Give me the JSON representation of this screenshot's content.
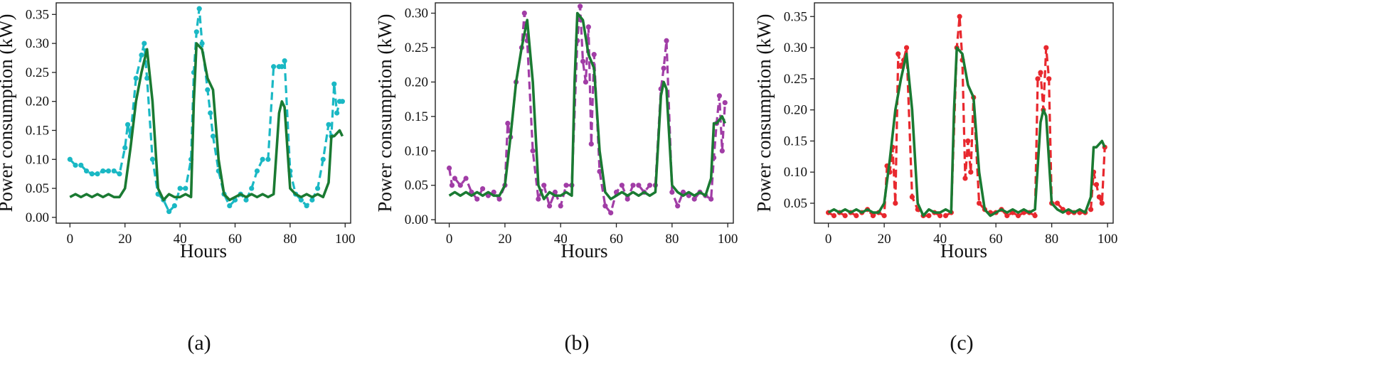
{
  "figure": {
    "panels": [
      "(a)",
      "(b)",
      "(c)"
    ]
  },
  "chart_data": [
    {
      "type": "line",
      "caption": "(a)",
      "xlabel": "Hours",
      "ylabel": "Power consumption (kW)",
      "xlim": [
        -5,
        102
      ],
      "ylim": [
        -0.01,
        0.37
      ],
      "xticks": [
        0,
        20,
        40,
        60,
        80,
        100
      ],
      "yticks": [
        0.0,
        0.05,
        0.1,
        0.15,
        0.2,
        0.25,
        0.3,
        0.35
      ],
      "ytick_labels": [
        "0.00",
        "0.05",
        "0.10",
        "0.15",
        "0.20",
        "0.25",
        "0.30",
        "0.35"
      ],
      "grid": false,
      "series": [
        {
          "color": "#1ab8c4",
          "style": "dashed-markers",
          "x": [
            0,
            2,
            4,
            6,
            8,
            10,
            12,
            14,
            16,
            18,
            20,
            21,
            22,
            24,
            26,
            27,
            28,
            30,
            32,
            34,
            36,
            38,
            40,
            42,
            44,
            45,
            46,
            47,
            48,
            50,
            51,
            52,
            54,
            56,
            58,
            60,
            62,
            64,
            66,
            68,
            70,
            72,
            74,
            76,
            77,
            78,
            80,
            82,
            84,
            86,
            88,
            90,
            92,
            94,
            95,
            96,
            97,
            98,
            99
          ],
          "y": [
            0.1,
            0.09,
            0.09,
            0.08,
            0.075,
            0.075,
            0.08,
            0.08,
            0.08,
            0.075,
            0.12,
            0.16,
            0.14,
            0.24,
            0.28,
            0.3,
            0.24,
            0.1,
            0.04,
            0.03,
            0.01,
            0.02,
            0.05,
            0.05,
            0.1,
            0.25,
            0.32,
            0.36,
            0.3,
            0.22,
            0.18,
            0.14,
            0.08,
            0.04,
            0.02,
            0.03,
            0.04,
            0.03,
            0.05,
            0.08,
            0.1,
            0.1,
            0.26,
            0.26,
            0.26,
            0.27,
            0.08,
            0.04,
            0.03,
            0.02,
            0.03,
            0.05,
            0.1,
            0.16,
            0.14,
            0.23,
            0.18,
            0.2,
            0.2
          ]
        },
        {
          "color": "#1a7a32",
          "style": "solid",
          "x": [
            0,
            2,
            4,
            6,
            8,
            10,
            12,
            14,
            16,
            18,
            20,
            22,
            24,
            26,
            28,
            30,
            32,
            34,
            36,
            38,
            40,
            42,
            44,
            45,
            46,
            48,
            50,
            52,
            54,
            56,
            58,
            60,
            62,
            64,
            66,
            68,
            70,
            72,
            74,
            76,
            77,
            78,
            80,
            82,
            84,
            86,
            88,
            90,
            92,
            94,
            95,
            96,
            98,
            99
          ],
          "y": [
            0.035,
            0.04,
            0.035,
            0.04,
            0.035,
            0.04,
            0.035,
            0.04,
            0.035,
            0.035,
            0.05,
            0.12,
            0.2,
            0.25,
            0.29,
            0.2,
            0.05,
            0.03,
            0.04,
            0.035,
            0.035,
            0.04,
            0.035,
            0.2,
            0.3,
            0.29,
            0.24,
            0.22,
            0.1,
            0.04,
            0.03,
            0.035,
            0.04,
            0.035,
            0.04,
            0.035,
            0.04,
            0.035,
            0.04,
            0.18,
            0.2,
            0.19,
            0.05,
            0.04,
            0.035,
            0.04,
            0.035,
            0.04,
            0.035,
            0.06,
            0.14,
            0.14,
            0.15,
            0.14
          ]
        }
      ]
    },
    {
      "type": "line",
      "caption": "(b)",
      "xlabel": "Hours",
      "ylabel": "Power consumption (kW)",
      "xlim": [
        -5,
        102
      ],
      "ylim": [
        -0.005,
        0.315
      ],
      "xticks": [
        0,
        20,
        40,
        60,
        80,
        100
      ],
      "yticks": [
        0.0,
        0.05,
        0.1,
        0.15,
        0.2,
        0.25,
        0.3
      ],
      "ytick_labels": [
        "0.00",
        "0.05",
        "0.10",
        "0.15",
        "0.20",
        "0.25",
        "0.30"
      ],
      "grid": false,
      "series": [
        {
          "color": "#a13da6",
          "style": "dashed-markers",
          "x": [
            0,
            1,
            2,
            4,
            6,
            8,
            10,
            12,
            14,
            16,
            18,
            20,
            21,
            22,
            24,
            26,
            27,
            28,
            30,
            32,
            34,
            36,
            38,
            40,
            42,
            44,
            46,
            47,
            48,
            49,
            50,
            51,
            52,
            54,
            56,
            58,
            60,
            62,
            64,
            66,
            68,
            70,
            72,
            74,
            76,
            77,
            78,
            80,
            82,
            84,
            86,
            88,
            90,
            92,
            94,
            95,
            96,
            97,
            98,
            99
          ],
          "y": [
            0.075,
            0.05,
            0.06,
            0.05,
            0.06,
            0.04,
            0.03,
            0.045,
            0.035,
            0.04,
            0.03,
            0.05,
            0.14,
            0.12,
            0.2,
            0.25,
            0.3,
            0.26,
            0.1,
            0.03,
            0.05,
            0.02,
            0.04,
            0.02,
            0.05,
            0.05,
            0.26,
            0.31,
            0.23,
            0.2,
            0.28,
            0.11,
            0.24,
            0.07,
            0.02,
            0.01,
            0.04,
            0.05,
            0.03,
            0.05,
            0.05,
            0.04,
            0.05,
            0.05,
            0.19,
            0.22,
            0.26,
            0.04,
            0.02,
            0.04,
            0.035,
            0.03,
            0.04,
            0.035,
            0.03,
            0.09,
            0.14,
            0.18,
            0.1,
            0.17
          ]
        },
        {
          "color": "#1a7a32",
          "style": "solid",
          "x": [
            0,
            2,
            4,
            6,
            8,
            10,
            12,
            14,
            16,
            18,
            20,
            22,
            24,
            26,
            28,
            30,
            32,
            34,
            36,
            38,
            40,
            42,
            44,
            45,
            46,
            48,
            50,
            52,
            54,
            56,
            58,
            60,
            62,
            64,
            66,
            68,
            70,
            72,
            74,
            76,
            77,
            78,
            80,
            82,
            84,
            86,
            88,
            90,
            92,
            94,
            95,
            96,
            98,
            99
          ],
          "y": [
            0.035,
            0.04,
            0.035,
            0.04,
            0.035,
            0.04,
            0.035,
            0.04,
            0.035,
            0.035,
            0.05,
            0.12,
            0.2,
            0.25,
            0.29,
            0.2,
            0.05,
            0.03,
            0.04,
            0.035,
            0.035,
            0.04,
            0.035,
            0.2,
            0.3,
            0.29,
            0.24,
            0.22,
            0.1,
            0.04,
            0.03,
            0.035,
            0.04,
            0.035,
            0.04,
            0.035,
            0.04,
            0.035,
            0.04,
            0.18,
            0.2,
            0.19,
            0.05,
            0.04,
            0.035,
            0.04,
            0.035,
            0.04,
            0.035,
            0.06,
            0.14,
            0.14,
            0.15,
            0.14
          ]
        }
      ]
    },
    {
      "type": "line",
      "caption": "(c)",
      "xlabel": "Hours",
      "ylabel": "Power consumption (kW)",
      "xlim": [
        -5,
        102
      ],
      "ylim": [
        0.018,
        0.372
      ],
      "xticks": [
        0,
        20,
        40,
        60,
        80,
        100
      ],
      "yticks": [
        0.05,
        0.1,
        0.15,
        0.2,
        0.25,
        0.3,
        0.35
      ],
      "ytick_labels": [
        "0.05",
        "0.10",
        "0.15",
        "0.20",
        "0.25",
        "0.30",
        "0.35"
      ],
      "grid": false,
      "series": [
        {
          "color": "#e8282e",
          "style": "dashed-markers",
          "x": [
            0,
            2,
            4,
            6,
            8,
            10,
            12,
            14,
            16,
            18,
            20,
            21,
            22,
            23,
            24,
            25,
            26,
            27,
            28,
            30,
            32,
            34,
            36,
            38,
            40,
            42,
            44,
            46,
            47,
            48,
            49,
            50,
            51,
            52,
            54,
            56,
            58,
            60,
            62,
            64,
            66,
            68,
            70,
            72,
            74,
            75,
            76,
            77,
            78,
            79,
            80,
            82,
            84,
            86,
            88,
            90,
            92,
            94,
            95,
            96,
            97,
            98,
            99
          ],
          "y": [
            0.035,
            0.03,
            0.035,
            0.03,
            0.035,
            0.03,
            0.035,
            0.04,
            0.03,
            0.035,
            0.03,
            0.11,
            0.1,
            0.14,
            0.05,
            0.29,
            0.27,
            0.28,
            0.3,
            0.06,
            0.04,
            0.03,
            0.03,
            0.035,
            0.03,
            0.03,
            0.035,
            0.3,
            0.35,
            0.28,
            0.09,
            0.15,
            0.1,
            0.22,
            0.05,
            0.04,
            0.035,
            0.035,
            0.04,
            0.03,
            0.035,
            0.03,
            0.035,
            0.035,
            0.03,
            0.25,
            0.26,
            0.2,
            0.3,
            0.25,
            0.05,
            0.05,
            0.04,
            0.035,
            0.035,
            0.035,
            0.035,
            0.04,
            0.1,
            0.08,
            0.06,
            0.05,
            0.14
          ]
        },
        {
          "color": "#1a7a32",
          "style": "solid",
          "x": [
            0,
            2,
            4,
            6,
            8,
            10,
            12,
            14,
            16,
            18,
            20,
            22,
            24,
            26,
            28,
            30,
            32,
            34,
            36,
            38,
            40,
            42,
            44,
            45,
            46,
            48,
            50,
            52,
            54,
            56,
            58,
            60,
            62,
            64,
            66,
            68,
            70,
            72,
            74,
            76,
            77,
            78,
            80,
            82,
            84,
            86,
            88,
            90,
            92,
            94,
            95,
            96,
            98,
            99
          ],
          "y": [
            0.035,
            0.04,
            0.035,
            0.04,
            0.035,
            0.04,
            0.035,
            0.04,
            0.035,
            0.035,
            0.05,
            0.12,
            0.2,
            0.25,
            0.29,
            0.2,
            0.05,
            0.03,
            0.04,
            0.035,
            0.035,
            0.04,
            0.035,
            0.2,
            0.3,
            0.29,
            0.24,
            0.22,
            0.1,
            0.04,
            0.03,
            0.035,
            0.04,
            0.035,
            0.04,
            0.035,
            0.04,
            0.035,
            0.04,
            0.18,
            0.2,
            0.19,
            0.05,
            0.04,
            0.035,
            0.04,
            0.035,
            0.04,
            0.035,
            0.06,
            0.14,
            0.14,
            0.15,
            0.14
          ]
        }
      ]
    }
  ]
}
